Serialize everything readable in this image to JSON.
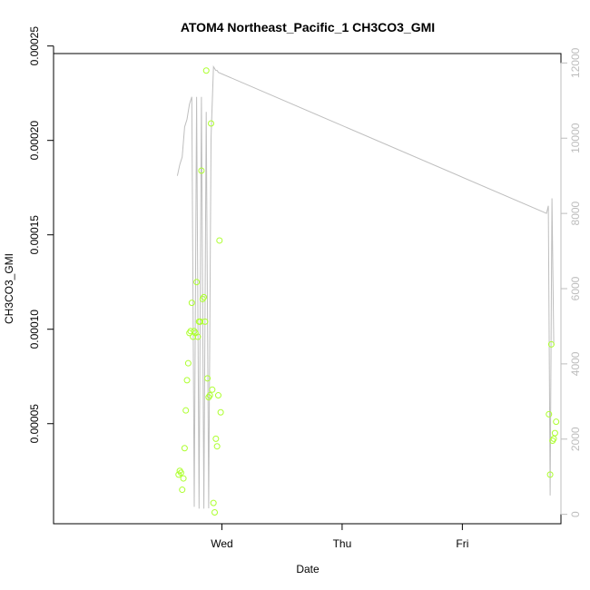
{
  "chart_data": {
    "type": "scatter",
    "title": "ATOM4 Northeast_Pacific_1 CH3CO3_GMI",
    "xlabel": "Date",
    "ylabel": "CH3CO3_GMI",
    "y2label": "",
    "grid": false,
    "legend": "none",
    "colors": {
      "points": "#adff2f",
      "line": "#bebebe",
      "axis": "#000000",
      "axis_right": "#bdbdbd"
    },
    "xlim": [
      -1.4,
      2.82
    ],
    "ylim": [
      -3e-06,
      0.000246
    ],
    "y2lim": [
      -250,
      12250
    ],
    "x_ticks": [
      {
        "value": 0,
        "label": "Wed"
      },
      {
        "value": 1,
        "label": "Thu"
      },
      {
        "value": 2,
        "label": "Fri"
      }
    ],
    "y_ticks": [
      {
        "value": 5e-05,
        "label": "0.00005"
      },
      {
        "value": 0.0001,
        "label": "0.00010"
      },
      {
        "value": 0.00015,
        "label": "0.00015"
      },
      {
        "value": 0.0002,
        "label": "0.00020"
      },
      {
        "value": 0.00025,
        "label": "0.00025"
      }
    ],
    "y2_ticks": [
      {
        "value": 0,
        "label": "0"
      },
      {
        "value": 2000,
        "label": "2000"
      },
      {
        "value": 4000,
        "label": "4000"
      },
      {
        "value": 6000,
        "label": "6000"
      },
      {
        "value": 8000,
        "label": "8000"
      },
      {
        "value": 10000,
        "label": "10000"
      },
      {
        "value": 12000,
        "label": "12000"
      }
    ],
    "series": [
      {
        "type": "scatter",
        "axis": "left",
        "x": [
          -0.36,
          -0.35,
          -0.34,
          -0.33,
          -0.32,
          -0.31,
          -0.3,
          -0.29,
          -0.28,
          -0.27,
          -0.26,
          -0.25,
          -0.24,
          -0.23,
          -0.22,
          -0.21,
          -0.2,
          -0.19,
          -0.18,
          -0.17,
          -0.16,
          -0.15,
          -0.14,
          -0.13,
          -0.12,
          -0.11,
          -0.1,
          -0.09,
          -0.08,
          -0.07,
          -0.06,
          -0.05,
          -0.04,
          -0.03,
          -0.02,
          -0.01,
          2.72,
          2.73,
          2.74,
          2.75,
          2.76,
          2.77,
          2.78
        ],
        "y": [
          2.3e-05,
          2.5e-05,
          2.4e-05,
          1.5e-05,
          2.1e-05,
          3.7e-05,
          5.7e-05,
          7.3e-05,
          8.2e-05,
          9.8e-05,
          9.9e-05,
          0.000114,
          9.6e-05,
          9.9e-05,
          9.8e-05,
          0.000125,
          9.6e-05,
          0.000104,
          0.000104,
          0.000184,
          0.000116,
          0.000117,
          0.000104,
          0.000237,
          7.4e-05,
          6.4e-05,
          6.5e-05,
          0.000209,
          6.8e-05,
          8e-06,
          3e-06,
          4.2e-05,
          3.8e-05,
          6.5e-05,
          0.000147,
          5.6e-05,
          5.5e-05,
          2.3e-05,
          9.2e-05,
          4.1e-05,
          4.2e-05,
          4.5e-05,
          5.1e-05
        ]
      },
      {
        "type": "line",
        "axis": "right",
        "x": [
          -0.37,
          -0.35,
          -0.33,
          -0.31,
          -0.29,
          -0.27,
          -0.25,
          -0.23,
          -0.21,
          -0.19,
          -0.17,
          -0.15,
          -0.13,
          -0.11,
          -0.09,
          -0.07,
          -0.05,
          -0.04,
          -0.03,
          2.7,
          2.715,
          2.73,
          2.745,
          2.76
        ],
        "y": [
          9000,
          9300,
          9500,
          10300,
          10500,
          10900,
          11100,
          200,
          11100,
          150,
          11100,
          150,
          10700,
          160,
          10000,
          11900,
          11800,
          11800,
          11750,
          8000,
          8200,
          500,
          8400,
          4500
        ]
      }
    ]
  }
}
